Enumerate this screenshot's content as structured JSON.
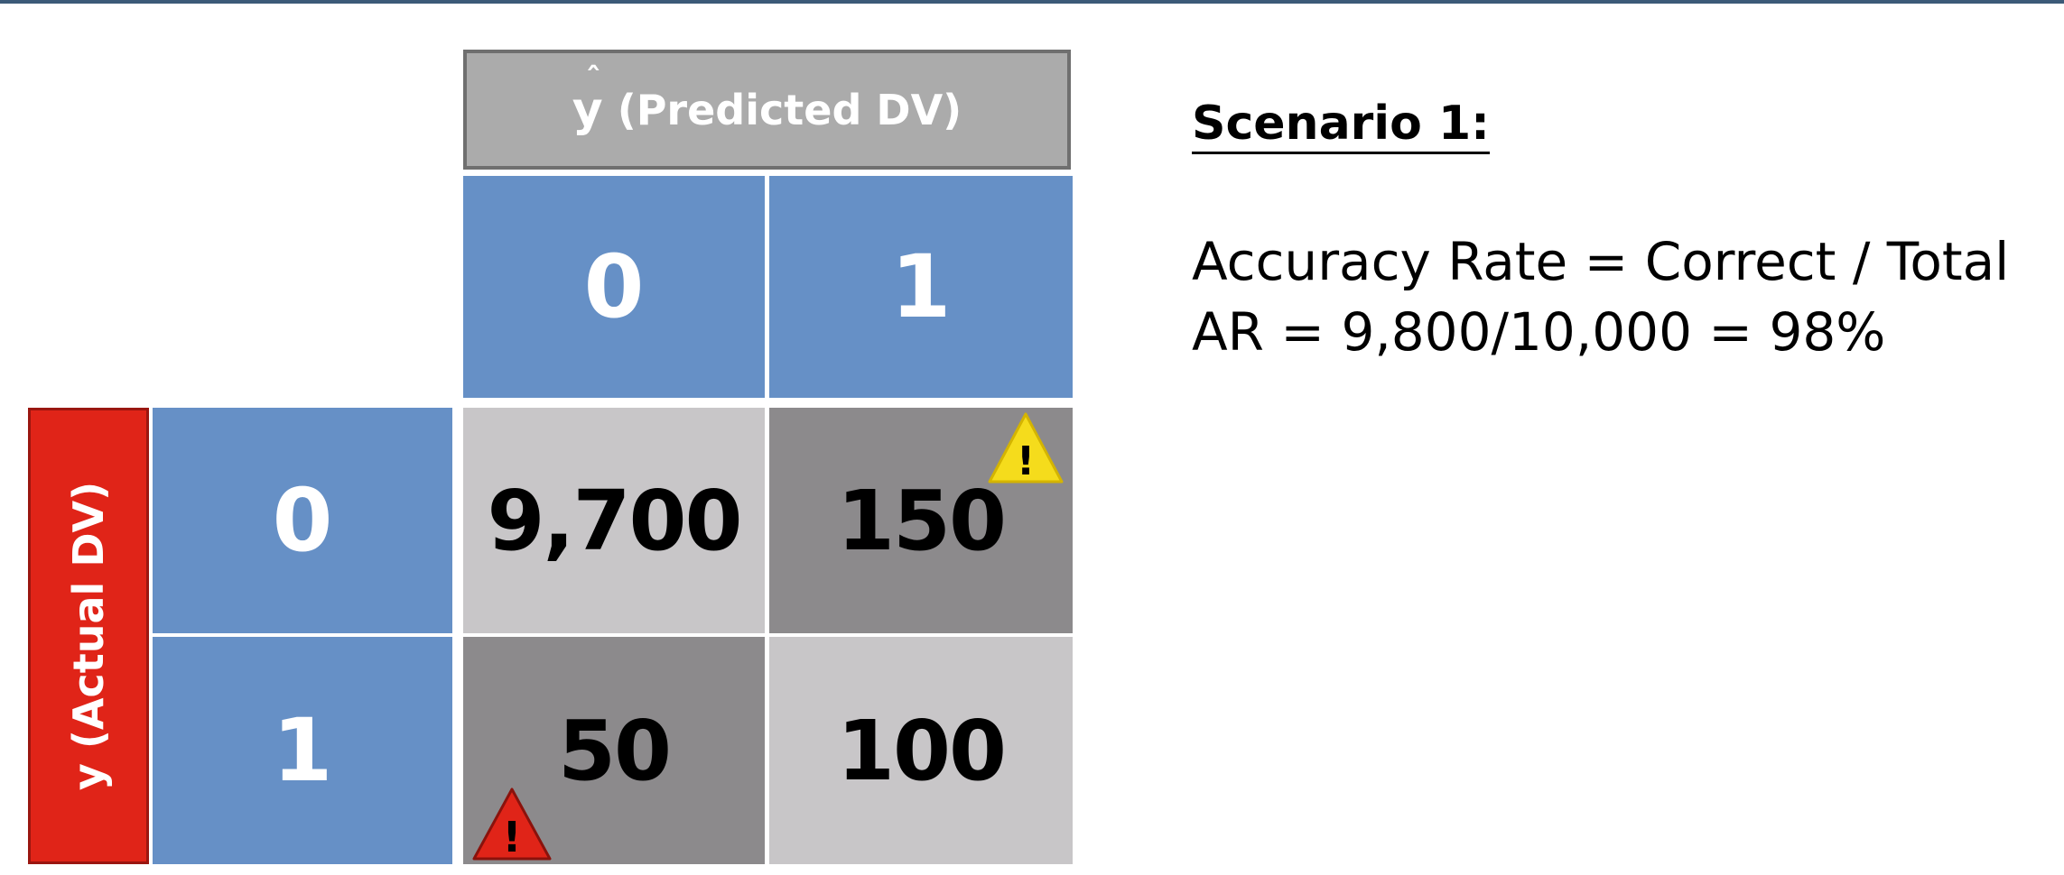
{
  "predicted_header": {
    "symbol": "y",
    "hat": "ˆ",
    "label": "(Predicted DV)"
  },
  "actual_header": {
    "label": "y (Actual DV)"
  },
  "column_labels": [
    "0",
    "1"
  ],
  "row_labels": [
    "0",
    "1"
  ],
  "cells": [
    [
      "9,700",
      "150"
    ],
    [
      "50",
      "100"
    ]
  ],
  "warning_icons": {
    "cell_0_1": "warning-triangle-yellow",
    "cell_1_0": "warning-triangle-red",
    "glyph": "!"
  },
  "colors": {
    "header_blue": "#6690c6",
    "predicted_gray": "#ababab",
    "actual_red": "#e02418",
    "correct_cell": "#c8c6c8",
    "error_cell": "#8c8a8c",
    "warning_yellow": "#f5dc1c",
    "warning_red": "#e02418"
  },
  "scenario": {
    "title": "Scenario 1:",
    "line1": "Accuracy Rate = Correct / Total",
    "line2": "AR = 9,800/10,000 = 98%"
  }
}
